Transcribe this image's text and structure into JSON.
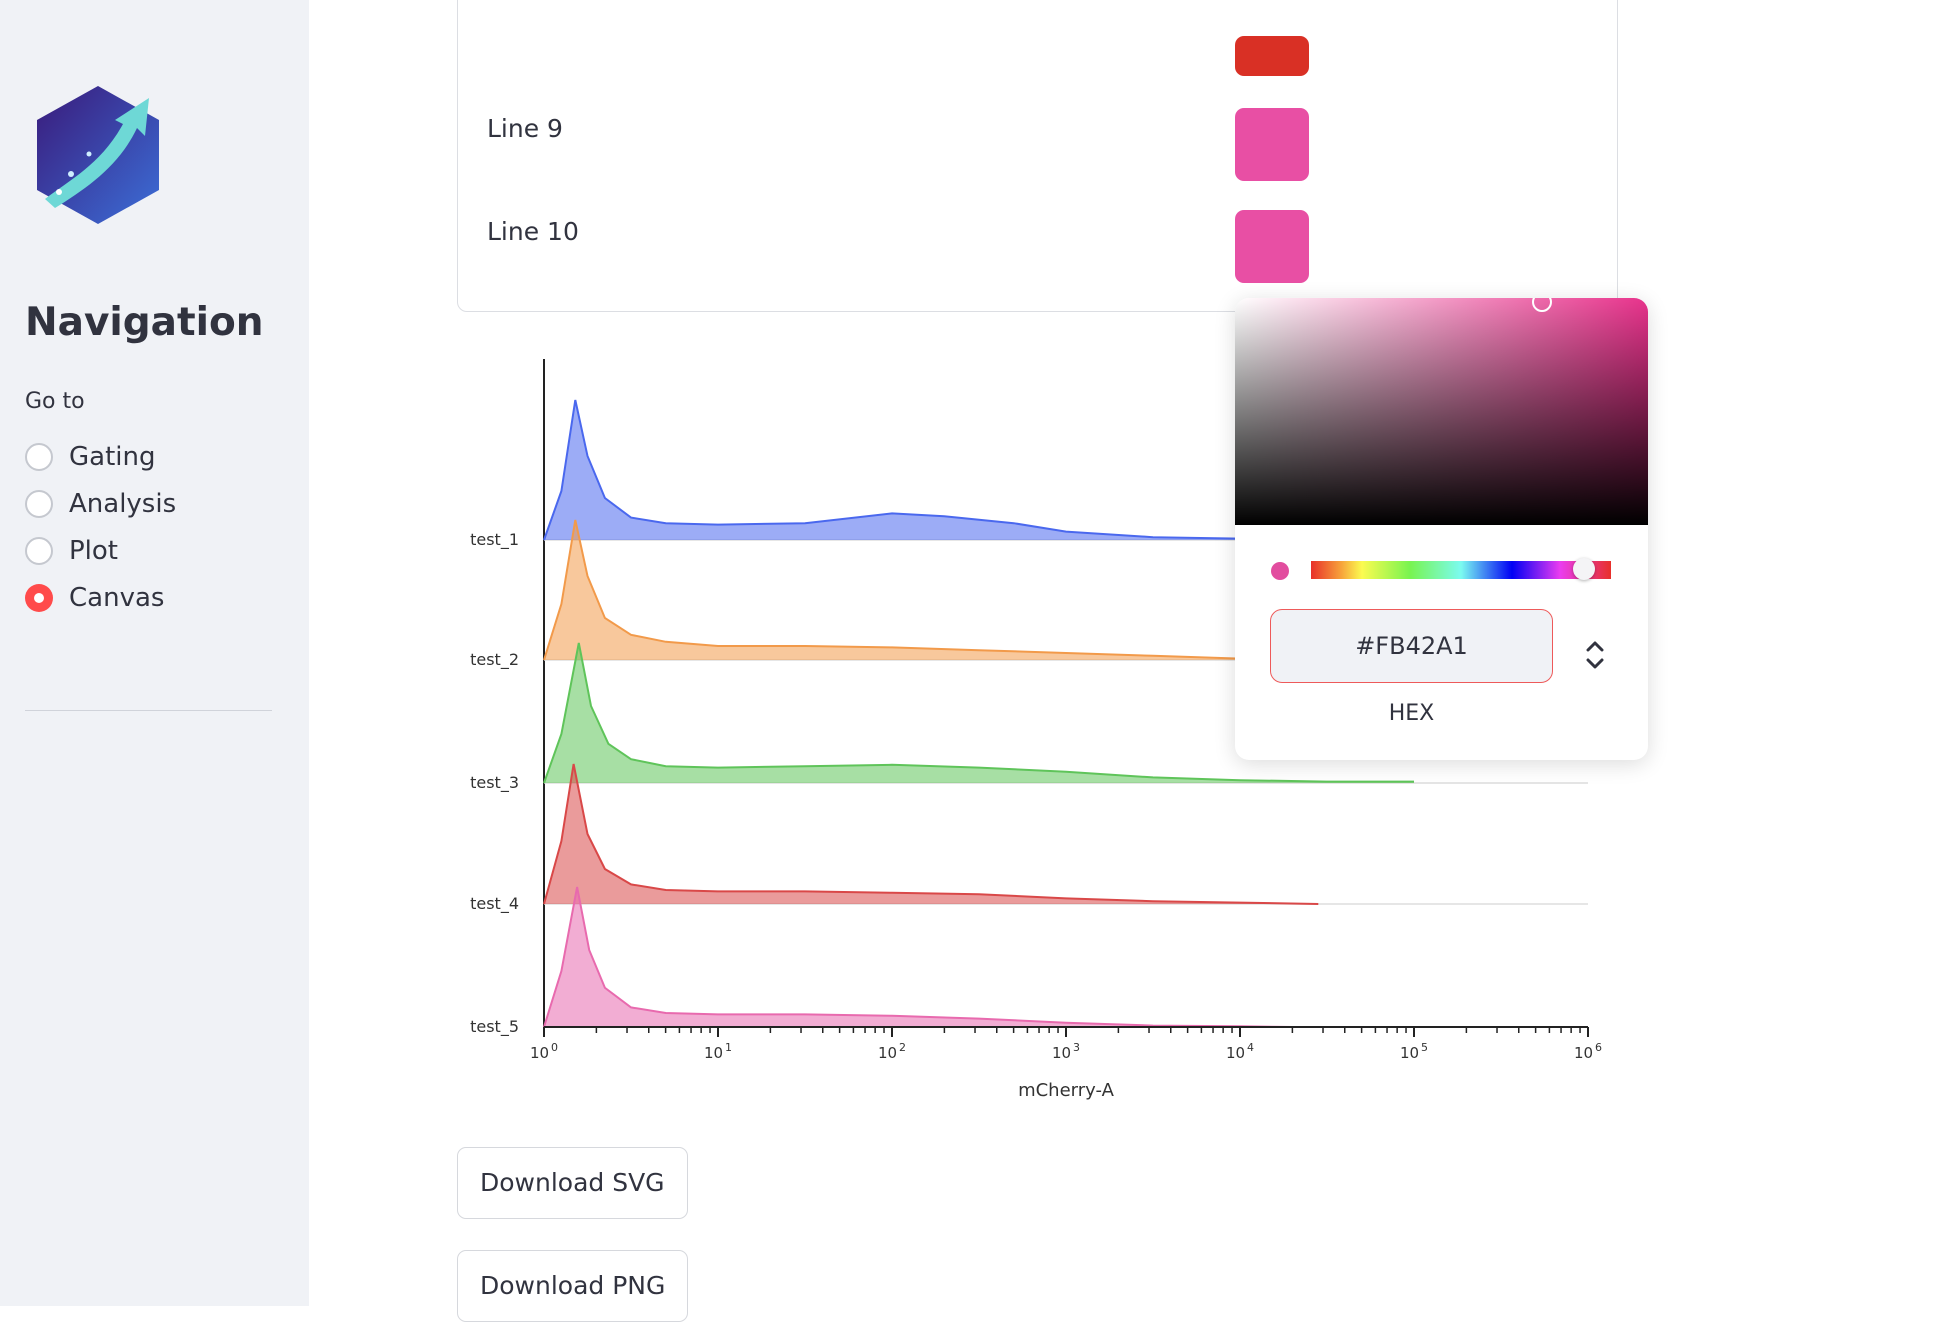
{
  "sidebar": {
    "title": "Navigation",
    "goto_label": "Go to",
    "options": [
      {
        "label": "Gating",
        "selected": false
      },
      {
        "label": "Analysis",
        "selected": false
      },
      {
        "label": "Plot",
        "selected": false
      },
      {
        "label": "Canvas",
        "selected": true
      }
    ]
  },
  "lines": [
    {
      "label": "Line 9",
      "color": "#E84FA4"
    },
    {
      "label": "Line 10",
      "color": "#E84FA4"
    }
  ],
  "partial_swatch_color": "#D93025",
  "color_picker": {
    "hex_value": "#FB42A1",
    "mode_label": "HEX"
  },
  "buttons": {
    "download_svg": "Download SVG",
    "download_png": "Download PNG"
  },
  "chart_data": {
    "type": "area",
    "title": "",
    "xlabel": "mCherry-A",
    "xscale": "log",
    "xlim": [
      1,
      1000000
    ],
    "x_ticks": [
      {
        "base": "10",
        "exp": "0"
      },
      {
        "base": "10",
        "exp": "1"
      },
      {
        "base": "10",
        "exp": "2"
      },
      {
        "base": "10",
        "exp": "3"
      },
      {
        "base": "10",
        "exp": "4"
      },
      {
        "base": "10",
        "exp": "5"
      },
      {
        "base": "10",
        "exp": "6"
      }
    ],
    "series": [
      {
        "name": "test_1",
        "color": "#4a68ee",
        "x_log10": [
          0,
          0.1,
          0.18,
          0.25,
          0.35,
          0.5,
          0.7,
          1,
          1.5,
          2,
          2.3,
          2.7,
          3,
          3.5,
          4
        ],
        "density": [
          0,
          0.35,
          1,
          0.6,
          0.3,
          0.16,
          0.12,
          0.11,
          0.12,
          0.19,
          0.17,
          0.12,
          0.06,
          0.02,
          0.01
        ]
      },
      {
        "name": "test_2",
        "color": "#f29a4a",
        "x_log10": [
          0,
          0.1,
          0.18,
          0.25,
          0.35,
          0.5,
          0.7,
          1,
          1.5,
          2,
          2.5,
          3,
          3.5,
          4,
          4.2
        ],
        "density": [
          0,
          0.4,
          1,
          0.6,
          0.3,
          0.18,
          0.13,
          0.1,
          0.1,
          0.09,
          0.07,
          0.05,
          0.03,
          0.01,
          0
        ]
      },
      {
        "name": "test_3",
        "color": "#5fc45a",
        "x_log10": [
          0,
          0.1,
          0.2,
          0.27,
          0.37,
          0.5,
          0.7,
          1,
          1.5,
          2,
          2.5,
          3,
          3.5,
          4,
          4.5,
          5
        ],
        "density": [
          0,
          0.35,
          1,
          0.55,
          0.28,
          0.17,
          0.12,
          0.11,
          0.12,
          0.13,
          0.11,
          0.08,
          0.04,
          0.02,
          0.01,
          0.01
        ]
      },
      {
        "name": "test_4",
        "color": "#d94848",
        "x_log10": [
          0,
          0.1,
          0.17,
          0.25,
          0.35,
          0.5,
          0.7,
          1,
          1.5,
          2,
          2.5,
          3,
          3.5,
          4,
          4.45
        ],
        "density": [
          0,
          0.45,
          1,
          0.5,
          0.25,
          0.14,
          0.1,
          0.09,
          0.09,
          0.08,
          0.07,
          0.04,
          0.02,
          0.01,
          0
        ]
      },
      {
        "name": "test_5",
        "color": "#e86aae",
        "x_log10": [
          0,
          0.1,
          0.19,
          0.26,
          0.35,
          0.5,
          0.7,
          1,
          1.5,
          2,
          2.5,
          3,
          3.5,
          4,
          4.3
        ],
        "density": [
          0,
          0.4,
          1,
          0.55,
          0.28,
          0.14,
          0.1,
          0.09,
          0.09,
          0.08,
          0.06,
          0.03,
          0.01,
          0.005,
          0
        ]
      }
    ]
  }
}
